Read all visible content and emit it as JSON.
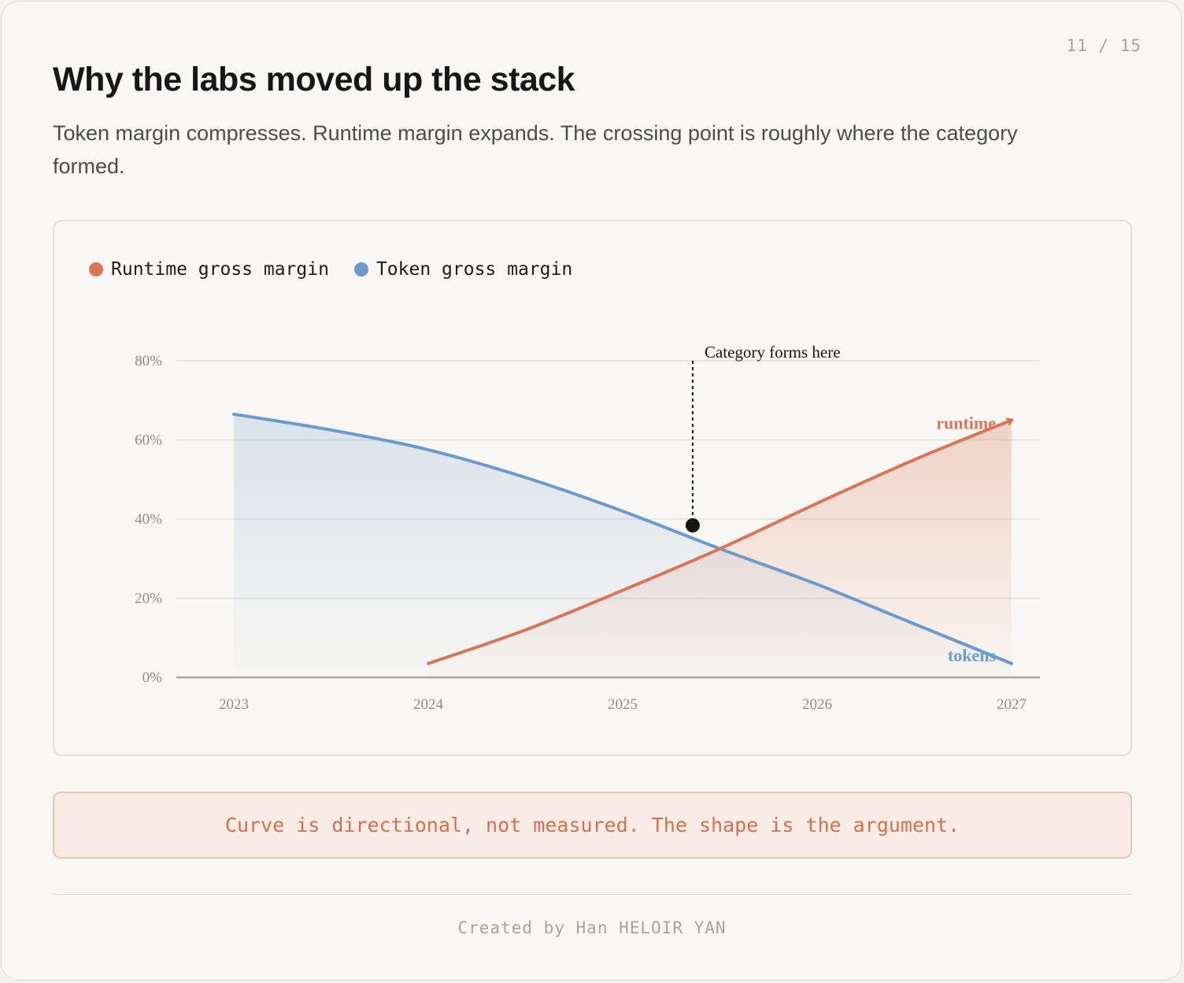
{
  "page": {
    "counter": "11 / 15"
  },
  "header": {
    "title": "Why the labs moved up the stack",
    "subtitle": "Token margin compresses. Runtime margin expands. The crossing point is roughly where the category formed."
  },
  "note": "Curve is directional, not measured. The shape is the argument.",
  "footer": "Created by Han HELOIR YAN",
  "colors": {
    "runtime": "#d9765a",
    "tokens": "#6b9bcc",
    "grid": "#e2dfda",
    "axis": "#a9a6a1",
    "tick": "#8f8b85",
    "marker": "#151515"
  },
  "chart_data": {
    "type": "line",
    "legend": {
      "placement": "top-left",
      "items": [
        {
          "label": "Runtime gross margin",
          "series": "runtime"
        },
        {
          "label": "Token gross margin",
          "series": "tokens"
        }
      ]
    },
    "x_ticks": [
      "2023",
      "2024",
      "2025",
      "2026",
      "2027"
    ],
    "xlim": [
      2023,
      2027
    ],
    "y_ticks": [
      "0%",
      "20%",
      "40%",
      "60%",
      "80%"
    ],
    "ylim": [
      0,
      80
    ],
    "grid": true,
    "series": [
      {
        "key": "tokens",
        "label": "tokens",
        "x": [
          2023,
          2023.5,
          2024,
          2024.5,
          2025,
          2025.5,
          2026,
          2026.5,
          2027
        ],
        "y": [
          66.5,
          62.5,
          57.5,
          50.5,
          42,
          32.5,
          23.5,
          13.5,
          3.5
        ]
      },
      {
        "key": "runtime",
        "label": "runtime",
        "x": [
          2024,
          2024.5,
          2025,
          2025.5,
          2026,
          2026.5,
          2027
        ],
        "y": [
          3.5,
          12,
          22,
          32.5,
          44,
          55,
          65
        ]
      }
    ],
    "annotation": {
      "text": "Category forms here",
      "x": 2025.36,
      "y": 35
    }
  }
}
